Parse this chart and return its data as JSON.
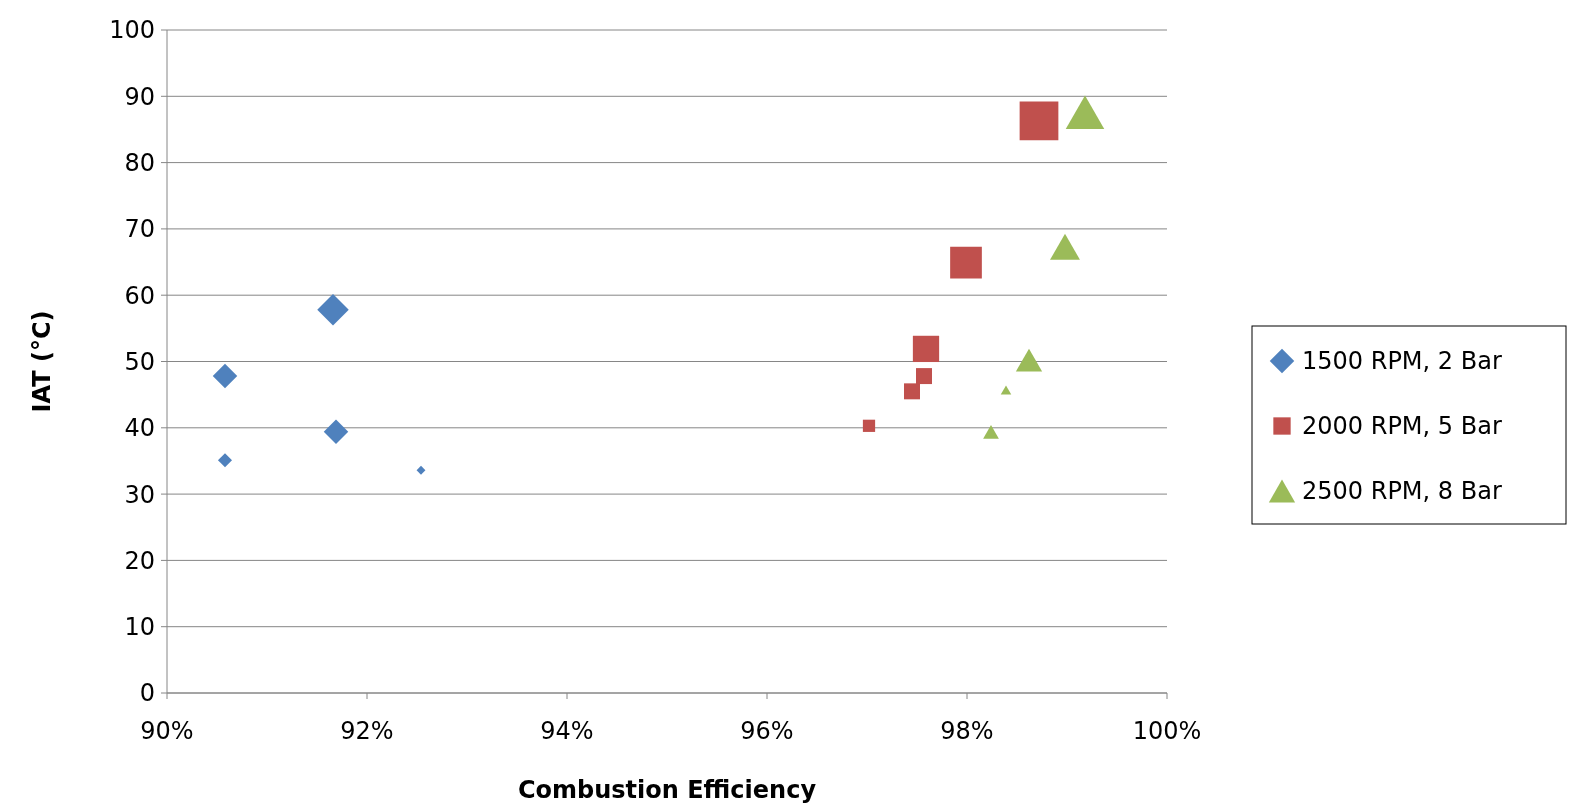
{
  "chart_data": {
    "type": "bubble",
    "xlabel": "Combustion Efficiency",
    "ylabel": "IAT (°C)",
    "xlim": [
      90,
      100
    ],
    "xticks": [
      {
        "value": 90,
        "label": "90%"
      },
      {
        "value": 92,
        "label": "92%"
      },
      {
        "value": 94,
        "label": "94%"
      },
      {
        "value": 96,
        "label": "96%"
      },
      {
        "value": 98,
        "label": "98%"
      },
      {
        "value": 100,
        "label": "100%"
      }
    ],
    "ylim": [
      0,
      100
    ],
    "yticks": [
      0,
      10,
      20,
      30,
      40,
      50,
      60,
      70,
      80,
      90,
      100
    ],
    "grid": "y",
    "legend": "right",
    "series": [
      {
        "name": "1500 RPM, 2 Bar",
        "color": "#4f81bd",
        "marker": "diamond",
        "x": [
          90.58,
          90.58,
          91.66,
          91.69,
          92.54
        ],
        "values": [
          47.8,
          35.1,
          57.8,
          39.4,
          33.6
        ],
        "sizes": [
          0.2,
          0.066,
          0.33,
          0.2,
          0.026
        ]
      },
      {
        "name": "2000 RPM, 5 Bar",
        "color": "#c0504d",
        "marker": "square",
        "x": [
          97.02,
          97.45,
          97.57,
          97.59,
          97.99,
          98.72
        ],
        "values": [
          40.3,
          45.5,
          47.8,
          51.9,
          64.9,
          86.3
        ],
        "sizes": [
          0.1,
          0.17,
          0.17,
          0.46,
          0.67,
          1
        ]
      },
      {
        "name": "2500 RPM, 8 Bar",
        "color": "#9bbb59",
        "marker": "triangle",
        "x": [
          98.24,
          98.39,
          98.62,
          98.98,
          99.18
        ],
        "values": [
          39.4,
          45.7,
          50.2,
          67.3,
          87.6
        ],
        "sizes": [
          0.072,
          0.032,
          0.2,
          0.26,
          0.43
        ]
      }
    ]
  }
}
